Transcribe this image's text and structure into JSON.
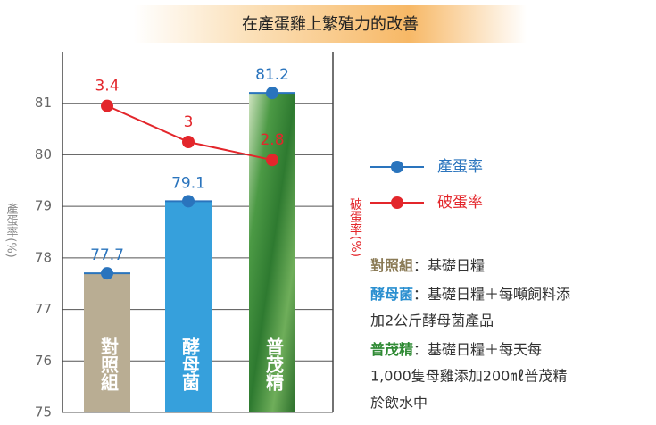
{
  "chart_data": {
    "type": "bar",
    "title": "在產蛋雞上繁殖力的改善",
    "categories": [
      "對照組",
      "酵母菌",
      "普茂精"
    ],
    "bar_colors": [
      "#b9ad93",
      "#36a0dc",
      "#3f8f3c"
    ],
    "series": [
      {
        "name": "產蛋率",
        "color": "#2a74bd",
        "values": [
          77.7,
          79.1,
          81.2
        ]
      },
      {
        "name": "破蛋率",
        "color": "#e3262b",
        "values": [
          3.4,
          3,
          2.8
        ],
        "axis": "y2"
      }
    ],
    "ylabel": "產蛋率(%)",
    "y2label": "破蛋率(%)",
    "ylim": [
      75,
      82
    ],
    "yticks": [
      75,
      76,
      77,
      78,
      79,
      80,
      81
    ],
    "y2lim": [
      0,
      4
    ],
    "grid": true,
    "notes": [
      {
        "label": "對照組",
        "color": "#8a7a55",
        "lines": [
          "：基礎日糧"
        ]
      },
      {
        "label": "酵母菌",
        "color": "#2a8fd0",
        "lines": [
          "：基礎日糧＋每噸飼料添",
          "加2公斤酵母菌產品"
        ]
      },
      {
        "label": "普茂精",
        "color": "#2f8a34",
        "lines": [
          "：基礎日糧＋每天每",
          "1,000隻母雞添加200㎖普茂精",
          "於飲水中"
        ]
      }
    ]
  }
}
